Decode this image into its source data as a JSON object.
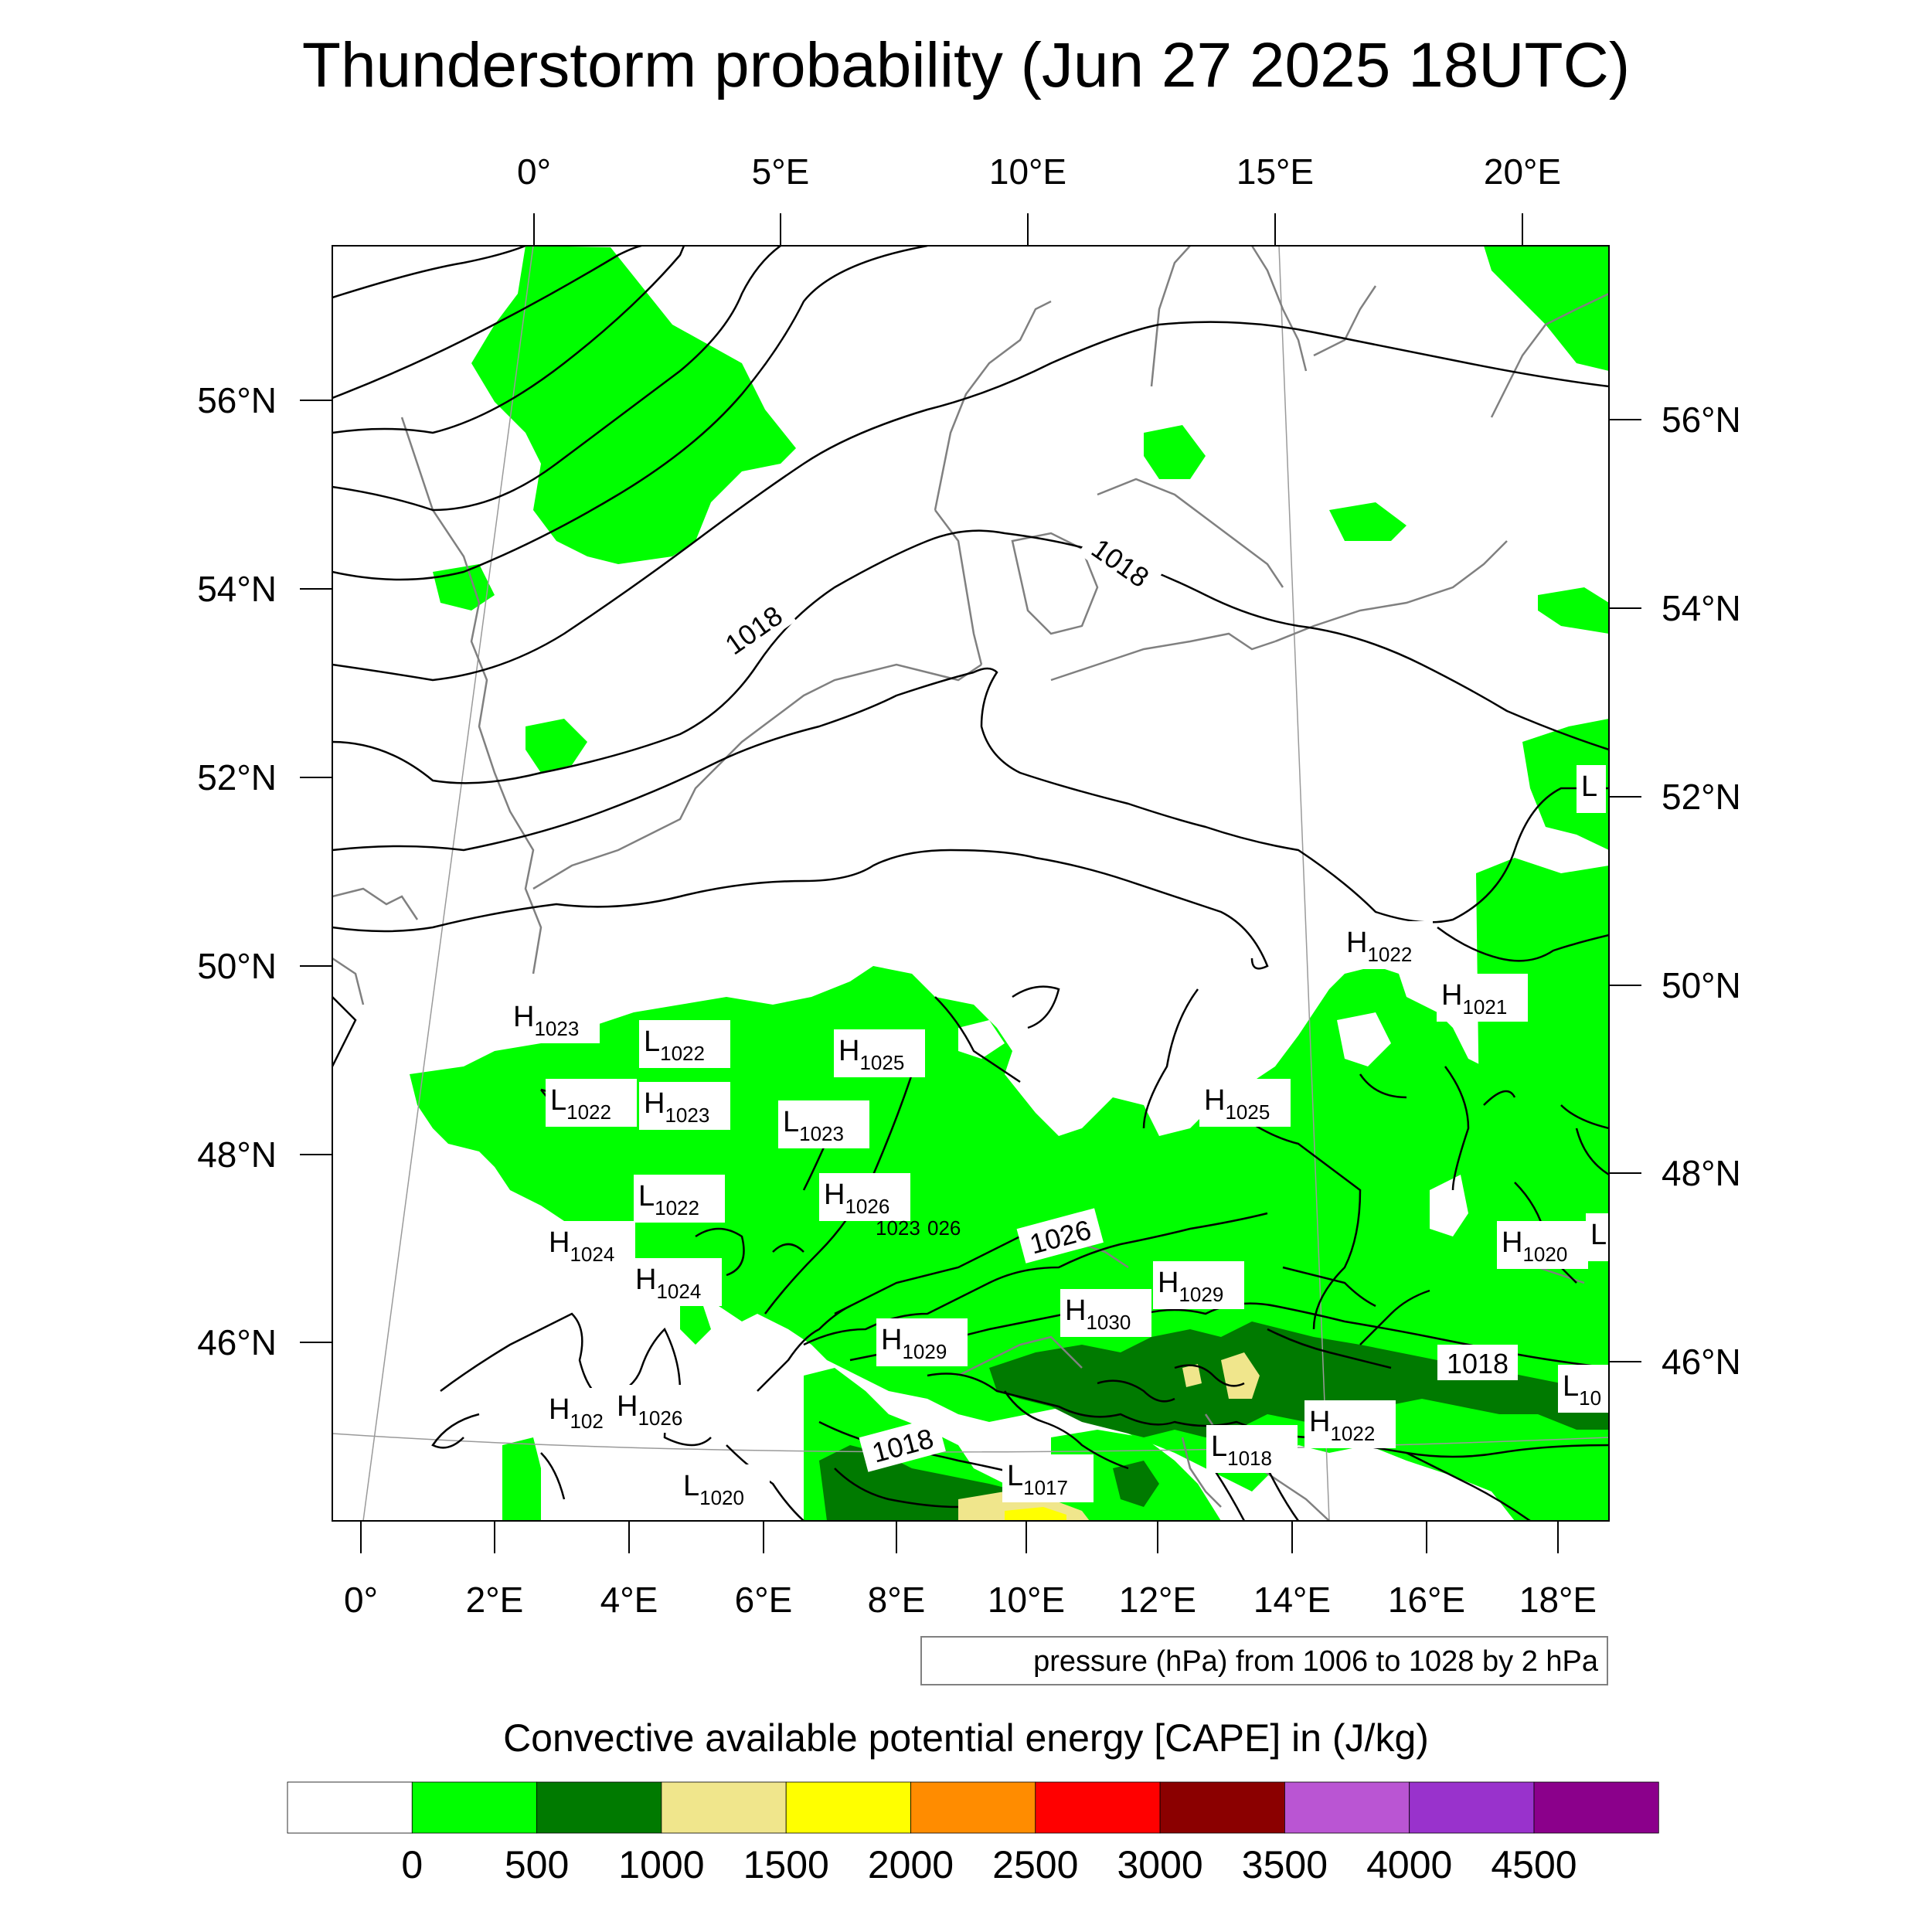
{
  "title": "Thunderstorm probability (Jun 27 2025 18UTC)",
  "top_lon_labels": [
    "0°",
    "5°E",
    "10°E",
    "15°E",
    "20°E"
  ],
  "left_lat_labels": [
    "56°N",
    "54°N",
    "52°N",
    "50°N",
    "48°N",
    "46°N"
  ],
  "right_lat_labels": [
    "56°N",
    "54°N",
    "52°N",
    "50°N",
    "48°N",
    "46°N"
  ],
  "bottom_lon_labels": [
    "0°",
    "2°E",
    "4°E",
    "6°E",
    "8°E",
    "10°E",
    "12°E",
    "14°E",
    "16°E",
    "18°E"
  ],
  "isobar_labels": [
    {
      "text": "1018",
      "rot": -35
    },
    {
      "text": "1018",
      "rot": 35
    },
    {
      "text": "1026",
      "rot": -15
    },
    {
      "text": "1018",
      "rot": 0
    },
    {
      "text": "1018",
      "rot": -15
    }
  ],
  "pressure_centers": [
    {
      "type": "H",
      "value": "1023"
    },
    {
      "type": "L",
      "value": "1022"
    },
    {
      "type": "H",
      "value": "1025"
    },
    {
      "type": "L",
      "value": "1022"
    },
    {
      "type": "H",
      "value": "1023"
    },
    {
      "type": "L",
      "value": "1023"
    },
    {
      "type": "H",
      "value": "1025"
    },
    {
      "type": "H",
      "value": "1022"
    },
    {
      "type": "H",
      "value": "1021"
    },
    {
      "type": "L",
      "value": "1022"
    },
    {
      "type": "H",
      "value": "1026"
    },
    {
      "type": "H",
      "value": "1024"
    },
    {
      "type": "H",
      "value": "1024"
    },
    {
      "type": "H",
      "value": "1029"
    },
    {
      "type": "H",
      "value": "1030"
    },
    {
      "type": "H",
      "value": "1029"
    },
    {
      "type": "H",
      "value": "1020"
    },
    {
      "type": "H",
      "value": "102"
    },
    {
      "type": "H",
      "value": "1026"
    },
    {
      "type": "L",
      "value": "1018"
    },
    {
      "type": "H",
      "value": "1022"
    },
    {
      "type": "L",
      "value": "1017"
    },
    {
      "type": "L",
      "value": "1020"
    },
    {
      "type": "L",
      "value": "10"
    },
    {
      "type": "L",
      "value": ""
    },
    {
      "type": "L",
      "value": ""
    }
  ],
  "partial_labels": [
    "1023",
    "026"
  ],
  "contour_note": "pressure (hPa) from 1006 to 1028 by 2 hPa",
  "legend": {
    "title": "Convective available potential energy [CAPE] in (J/kg)",
    "colors": [
      "#ffffff",
      "#00ff00",
      "#007a00",
      "#f0e68c",
      "#ffff00",
      "#ff8c00",
      "#ff0000",
      "#8b0000",
      "#ba55d3",
      "#9932cc",
      "#8b008b"
    ],
    "ticks": [
      "0",
      "500",
      "1000",
      "1500",
      "2000",
      "2500",
      "3000",
      "3500",
      "4000",
      "4500"
    ]
  },
  "colors": {
    "cape_low": "#00ff00",
    "cape_mid": "#007a00",
    "cape_high": "#f0e68c",
    "cape_higher": "#ffff00",
    "isobar": "#000000",
    "coast": "#808080"
  }
}
